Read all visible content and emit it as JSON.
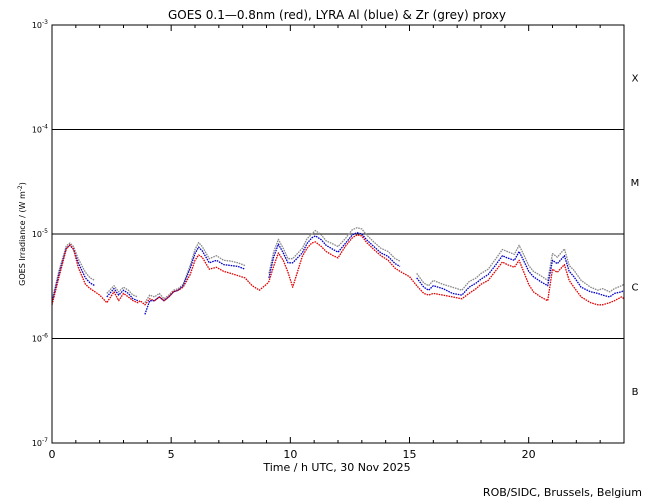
{
  "chart_data": {
    "type": "line",
    "title": "GOES 0.1—0.8nm (red), LYRA Al (blue) & Zr (grey) proxy",
    "xlabel": "Time / h UTC, 30 Nov 2025",
    "ylabel_main": "GOES Irradiance / (W m",
    "ylabel_exp": "-2",
    "ylabel_close": ")",
    "xlim": [
      0,
      24
    ],
    "ylim_log10": [
      -7,
      -3
    ],
    "ylog": true,
    "grid": "horizontal lines at 1e-4, 1e-5, 1e-6",
    "x_ticks": [
      {
        "value": 0,
        "label": "0"
      },
      {
        "value": 5,
        "label": "5"
      },
      {
        "value": 10,
        "label": "10"
      },
      {
        "value": 15,
        "label": "15"
      },
      {
        "value": 20,
        "label": "20"
      }
    ],
    "y_ticks": [
      {
        "exp": -3,
        "base": "10",
        "sup": "-3"
      },
      {
        "exp": -4,
        "base": "10",
        "sup": "-4"
      },
      {
        "exp": -5,
        "base": "10",
        "sup": "-5"
      },
      {
        "exp": -6,
        "base": "10",
        "sup": "-6"
      },
      {
        "exp": -7,
        "base": "10",
        "sup": "-7"
      }
    ],
    "flare_classes": [
      {
        "label": "X",
        "exp": -3.5
      },
      {
        "label": "M",
        "exp": -4.5
      },
      {
        "label": "C",
        "exp": -5.5
      },
      {
        "label": "B",
        "exp": -6.5
      }
    ],
    "colors": {
      "goes": "#e00000",
      "lyra_al": "#0000c8",
      "lyra_zr": "#888888"
    },
    "series": [
      {
        "key": "zr",
        "x": [
          0.0,
          0.3,
          0.6,
          0.75,
          0.9,
          1.1,
          1.4,
          1.6,
          1.8,
          2.0,
          2.3,
          2.6,
          2.8,
          3.0,
          3.2,
          3.4,
          3.6,
          3.7,
          3.9,
          4.1,
          4.3,
          4.5,
          4.7,
          4.9,
          5.1,
          5.3,
          5.5,
          5.8,
          6.0,
          6.15,
          6.3,
          6.6,
          6.9,
          7.2,
          7.5,
          7.8,
          8.1,
          9.0,
          9.1,
          9.3,
          9.5,
          9.7,
          9.9,
          10.1,
          10.5,
          10.7,
          10.9,
          11.05,
          11.3,
          11.5,
          11.8,
          12.0,
          12.3,
          12.6,
          12.8,
          13.0,
          13.2,
          13.5,
          13.8,
          14.1,
          14.4,
          14.6,
          15.0,
          15.3,
          15.6,
          15.8,
          16.0,
          16.4,
          16.8,
          17.2,
          17.5,
          17.8,
          18.0,
          18.3,
          18.6,
          18.9,
          19.1,
          19.4,
          19.6,
          19.8,
          20.0,
          20.2,
          20.5,
          20.8,
          21.0,
          21.2,
          21.5,
          21.7,
          21.9,
          22.2,
          22.6,
          22.9,
          23.1,
          23.4,
          23.6,
          23.9,
          24.0
        ],
        "y": [
          2.3e-06,
          4.5e-06,
          7.7e-06,
          8.2e-06,
          7.6e-06,
          5.8e-06,
          4.3e-06,
          3.8e-06,
          3.6e-06,
          null,
          2.7e-06,
          3.2e-06,
          2.8e-06,
          3.1e-06,
          2.9e-06,
          2.6e-06,
          2.5e-06,
          null,
          2.2e-06,
          2.6e-06,
          2.5e-06,
          2.7e-06,
          2.4e-06,
          2.6e-06,
          2.9e-06,
          3e-06,
          3.3e-06,
          5e-06,
          7.1e-06,
          8.3e-06,
          7.6e-06,
          5.8e-06,
          6.2e-06,
          5.6e-06,
          5.5e-06,
          5.3e-06,
          5e-06,
          null,
          4.2e-06,
          6.7e-06,
          8.9e-06,
          7.3e-06,
          5.8e-06,
          5.8e-06,
          7.3e-06,
          9e-06,
          1e-05,
          1.08e-05,
          9.8e-06,
          8.6e-06,
          8e-06,
          7.6e-06,
          9e-06,
          1.1e-05,
          1.15e-05,
          1.12e-05,
          9.8e-06,
          8.4e-06,
          7.3e-06,
          6.8e-06,
          5.8e-06,
          5.5e-06,
          null,
          4.2e-06,
          3.4e-06,
          3.2e-06,
          3.6e-06,
          3.3e-06,
          3.1e-06,
          2.9e-06,
          3.5e-06,
          3.8e-06,
          4.2e-06,
          4.6e-06,
          5.7e-06,
          7.1e-06,
          6.8e-06,
          6.4e-06,
          7.8e-06,
          6.3e-06,
          5e-06,
          4.4e-06,
          4e-06,
          3.6e-06,
          6.5e-06,
          6e-06,
          7.2e-06,
          5e-06,
          4.5e-06,
          3.6e-06,
          3.1e-06,
          2.9e-06,
          3e-06,
          2.8e-06,
          3e-06,
          3.2e-06,
          3.3e-06
        ]
      },
      {
        "key": "al",
        "x": [
          0.0,
          0.3,
          0.6,
          0.75,
          0.9,
          1.1,
          1.4,
          1.6,
          1.8,
          2.0,
          2.3,
          2.6,
          2.8,
          3.0,
          3.2,
          3.4,
          3.6,
          3.7,
          3.9,
          4.1,
          4.3,
          4.5,
          4.7,
          4.9,
          5.1,
          5.3,
          5.5,
          5.8,
          6.0,
          6.15,
          6.3,
          6.6,
          6.9,
          7.2,
          7.5,
          7.8,
          8.1,
          9.0,
          9.1,
          9.3,
          9.5,
          9.7,
          9.9,
          10.1,
          10.5,
          10.7,
          10.9,
          11.05,
          11.3,
          11.5,
          11.8,
          12.0,
          12.3,
          12.6,
          12.8,
          13.0,
          13.2,
          13.5,
          13.8,
          14.1,
          14.4,
          14.6,
          15.0,
          15.3,
          15.6,
          15.8,
          16.0,
          16.4,
          16.8,
          17.2,
          17.5,
          17.8,
          18.0,
          18.3,
          18.6,
          18.9,
          19.1,
          19.4,
          19.6,
          19.8,
          20.0,
          20.2,
          20.5,
          20.8,
          21.0,
          21.2,
          21.5,
          21.7,
          21.9,
          22.2,
          22.6,
          22.9,
          23.1,
          23.4,
          23.6,
          23.9,
          24.0
        ],
        "y": [
          2.2e-06,
          4.2e-06,
          7.3e-06,
          7.8e-06,
          7.1e-06,
          5.3e-06,
          3.8e-06,
          3.4e-06,
          3.2e-06,
          null,
          2.5e-06,
          3e-06,
          2.6e-06,
          2.9e-06,
          2.7e-06,
          2.4e-06,
          2.3e-06,
          null,
          1.7e-06,
          2.3e-06,
          2.3e-06,
          2.5e-06,
          2.3e-06,
          2.5e-06,
          2.8e-06,
          2.9e-06,
          3.2e-06,
          4.7e-06,
          6.5e-06,
          7.5e-06,
          6.9e-06,
          5.3e-06,
          5.6e-06,
          5.1e-06,
          5e-06,
          4.9e-06,
          4.6e-06,
          null,
          3.8e-06,
          6e-06,
          8e-06,
          6.6e-06,
          5.3e-06,
          5.3e-06,
          6.6e-06,
          8.1e-06,
          9.2e-06,
          9.6e-06,
          8.8e-06,
          7.8e-06,
          7.1e-06,
          6.7e-06,
          8.1e-06,
          9.8e-06,
          1.03e-05,
          1e-05,
          8.8e-06,
          7.6e-06,
          6.6e-06,
          6.1e-06,
          5.2e-06,
          4.9e-06,
          null,
          3.8e-06,
          3.1e-06,
          2.9e-06,
          3.2e-06,
          3e-06,
          2.7e-06,
          2.6e-06,
          3.1e-06,
          3.4e-06,
          3.7e-06,
          4.1e-06,
          5e-06,
          6.2e-06,
          5.9e-06,
          5.6e-06,
          6.8e-06,
          5.5e-06,
          4.4e-06,
          3.9e-06,
          3.5e-06,
          3.2e-06,
          5.6e-06,
          5.2e-06,
          6.2e-06,
          4.4e-06,
          3.9e-06,
          3.1e-06,
          2.8e-06,
          2.7e-06,
          2.6e-06,
          2.5e-06,
          2.7e-06,
          2.8e-06,
          2.9e-06
        ]
      },
      {
        "key": "goes",
        "x": [
          0.0,
          0.3,
          0.6,
          0.75,
          0.9,
          1.1,
          1.4,
          1.6,
          1.8,
          2.0,
          2.3,
          2.6,
          2.8,
          3.0,
          3.2,
          3.4,
          3.6,
          3.7,
          3.9,
          4.1,
          4.3,
          4.5,
          4.7,
          4.9,
          5.1,
          5.3,
          5.5,
          5.8,
          6.0,
          6.15,
          6.3,
          6.6,
          6.9,
          7.2,
          7.5,
          7.8,
          8.1,
          8.4,
          8.7,
          9.0,
          9.1,
          9.3,
          9.5,
          9.7,
          9.9,
          10.1,
          10.5,
          10.7,
          10.9,
          11.05,
          11.3,
          11.5,
          11.8,
          12.0,
          12.3,
          12.6,
          12.8,
          13.0,
          13.2,
          13.5,
          13.8,
          14.1,
          14.4,
          14.6,
          15.0,
          15.3,
          15.6,
          15.8,
          16.0,
          16.4,
          16.8,
          17.2,
          17.5,
          17.8,
          18.0,
          18.3,
          18.6,
          18.9,
          19.1,
          19.4,
          19.6,
          19.8,
          20.0,
          20.2,
          20.5,
          20.8,
          21.0,
          21.2,
          21.5,
          21.7,
          21.9,
          22.2,
          22.6,
          22.9,
          23.1,
          23.4,
          23.6,
          23.9,
          24.0
        ],
        "y": [
          2.1e-06,
          3.9e-06,
          7.2e-06,
          7.9e-06,
          7.2e-06,
          4.8e-06,
          3.3e-06,
          3e-06,
          2.8e-06,
          2.6e-06,
          2.2e-06,
          2.8e-06,
          2.3e-06,
          2.7e-06,
          2.5e-06,
          2.3e-06,
          2.2e-06,
          2.3e-06,
          2.1e-06,
          2.4e-06,
          2.3e-06,
          2.5e-06,
          2.3e-06,
          2.5e-06,
          2.8e-06,
          2.9e-06,
          3.1e-06,
          4.1e-06,
          5.6e-06,
          6.3e-06,
          6e-06,
          4.6e-06,
          4.8e-06,
          4.4e-06,
          4.2e-06,
          4e-06,
          3.8e-06,
          3.2e-06,
          2.9e-06,
          3.3e-06,
          3.5e-06,
          4.9e-06,
          6.6e-06,
          5.6e-06,
          4.3e-06,
          3.1e-06,
          6.1e-06,
          7.3e-06,
          8.2e-06,
          8.4e-06,
          7.6e-06,
          6.8e-06,
          6.2e-06,
          5.9e-06,
          7.6e-06,
          9.2e-06,
          9.8e-06,
          9.6e-06,
          8.3e-06,
          7.1e-06,
          6.2e-06,
          5.6e-06,
          4.7e-06,
          4.4e-06,
          3.9e-06,
          3.2e-06,
          2.7e-06,
          2.6e-06,
          2.7e-06,
          2.6e-06,
          2.5e-06,
          2.4e-06,
          2.7e-06,
          3e-06,
          3.3e-06,
          3.6e-06,
          4.4e-06,
          5.4e-06,
          5.1e-06,
          4.8e-06,
          5.6e-06,
          4.3e-06,
          3.3e-06,
          2.8e-06,
          2.5e-06,
          2.3e-06,
          4.6e-06,
          4.3e-06,
          5.1e-06,
          3.6e-06,
          3.1e-06,
          2.5e-06,
          2.2e-06,
          2.1e-06,
          2.1e-06,
          2.2e-06,
          2.3e-06,
          2.5e-06,
          2.4e-06
        ]
      }
    ]
  },
  "credit": "ROB/SIDC, Brussels, Belgium"
}
